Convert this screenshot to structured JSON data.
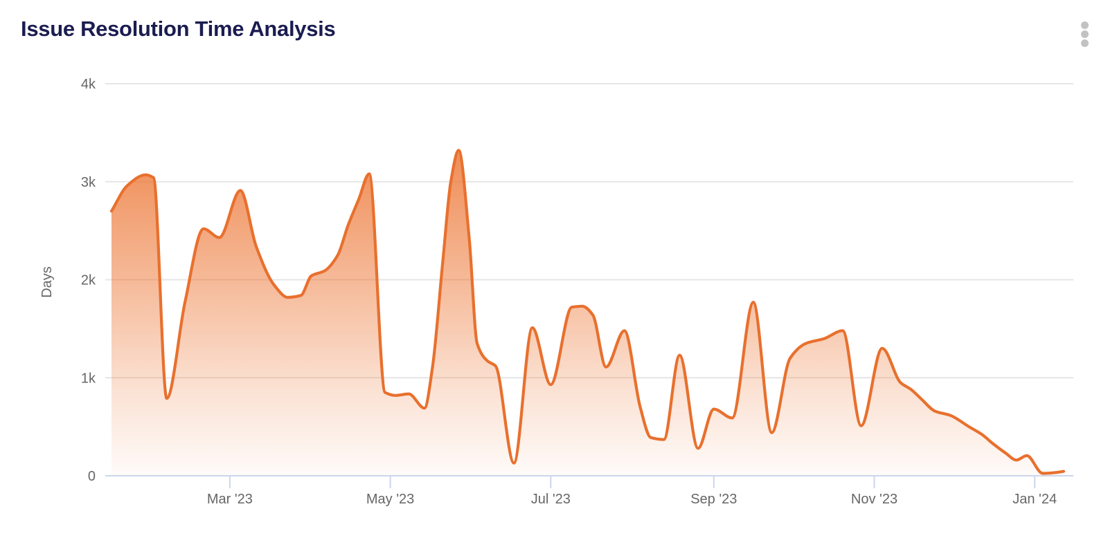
{
  "header": {
    "title": "Issue Resolution Time Analysis",
    "menu_icon": "kebab-vertical-dots"
  },
  "colors": {
    "title_text": "#1b1c50",
    "series_line": "#e8702e",
    "area_fill_base": "#ec7330",
    "axis_line": "#ccd6eb",
    "gridline": "#e6e6e6",
    "tick_label": "#666666",
    "menu_dots": "#c2c2c2",
    "background": "#ffffff"
  },
  "chart_data": {
    "type": "area",
    "title": "Issue Resolution Time Analysis",
    "xlabel": "",
    "ylabel": "Days",
    "ylim": [
      0,
      4000
    ],
    "x_domain": [
      "2023-01-15",
      "2024-01-12"
    ],
    "grid": true,
    "legend_position": "none",
    "smooth": true,
    "yticks": [
      {
        "value": 0,
        "label": "0"
      },
      {
        "value": 1000,
        "label": "1k"
      },
      {
        "value": 2000,
        "label": "2k"
      },
      {
        "value": 3000,
        "label": "3k"
      },
      {
        "value": 4000,
        "label": "4k"
      }
    ],
    "xticks": [
      {
        "date": "2023-03-01",
        "label": "Mar '23"
      },
      {
        "date": "2023-05-01",
        "label": "May '23"
      },
      {
        "date": "2023-07-01",
        "label": "Jul '23"
      },
      {
        "date": "2023-09-01",
        "label": "Sep '23"
      },
      {
        "date": "2023-11-01",
        "label": "Nov '23"
      },
      {
        "date": "2024-01-01",
        "label": "Jan '24"
      }
    ],
    "series": {
      "unit": "days",
      "points": [
        [
          "2023-01-15",
          2700
        ],
        [
          "2023-01-21",
          2960
        ],
        [
          "2023-01-28",
          3070
        ],
        [
          "2023-01-31",
          3040
        ],
        [
          "2023-02-05",
          790
        ],
        [
          "2023-02-12",
          1780
        ],
        [
          "2023-02-19",
          2520
        ],
        [
          "2023-02-25",
          2430
        ],
        [
          "2023-03-05",
          2910
        ],
        [
          "2023-03-11",
          2340
        ],
        [
          "2023-03-18",
          1940
        ],
        [
          "2023-03-23",
          1820
        ],
        [
          "2023-03-28",
          1840
        ],
        [
          "2023-04-01",
          2040
        ],
        [
          "2023-04-06",
          2090
        ],
        [
          "2023-04-11",
          2250
        ],
        [
          "2023-04-15",
          2560
        ],
        [
          "2023-04-19",
          2820
        ],
        [
          "2023-04-23",
          3080
        ],
        [
          "2023-04-29",
          850
        ],
        [
          "2023-05-03",
          820
        ],
        [
          "2023-05-08",
          835
        ],
        [
          "2023-05-14",
          690
        ],
        [
          "2023-05-17",
          1100
        ],
        [
          "2023-05-21",
          2200
        ],
        [
          "2023-05-24",
          3000
        ],
        [
          "2023-05-27",
          3320
        ],
        [
          "2023-05-31",
          2420
        ],
        [
          "2023-06-03",
          1350
        ],
        [
          "2023-06-07",
          1170
        ],
        [
          "2023-06-10",
          1120
        ],
        [
          "2023-06-17",
          130
        ],
        [
          "2023-06-24",
          1510
        ],
        [
          "2023-07-01",
          930
        ],
        [
          "2023-07-09",
          1720
        ],
        [
          "2023-07-13",
          1730
        ],
        [
          "2023-07-17",
          1640
        ],
        [
          "2023-07-22",
          1110
        ],
        [
          "2023-07-29",
          1480
        ],
        [
          "2023-08-04",
          700
        ],
        [
          "2023-08-08",
          390
        ],
        [
          "2023-08-13",
          370
        ],
        [
          "2023-08-19",
          1230
        ],
        [
          "2023-08-26",
          280
        ],
        [
          "2023-09-01",
          680
        ],
        [
          "2023-09-08",
          590
        ],
        [
          "2023-09-16",
          1770
        ],
        [
          "2023-09-23",
          440
        ],
        [
          "2023-09-30",
          1200
        ],
        [
          "2023-10-06",
          1350
        ],
        [
          "2023-10-13",
          1400
        ],
        [
          "2023-10-20",
          1480
        ],
        [
          "2023-10-27",
          510
        ],
        [
          "2023-11-04",
          1300
        ],
        [
          "2023-11-11",
          950
        ],
        [
          "2023-11-15",
          880
        ],
        [
          "2023-11-19",
          780
        ],
        [
          "2023-11-24",
          660
        ],
        [
          "2023-11-30",
          615
        ],
        [
          "2023-12-07",
          500
        ],
        [
          "2023-12-12",
          420
        ],
        [
          "2023-12-16",
          330
        ],
        [
          "2023-12-21",
          230
        ],
        [
          "2023-12-25",
          160
        ],
        [
          "2023-12-29",
          205
        ],
        [
          "2024-01-04",
          25
        ],
        [
          "2024-01-08",
          30
        ],
        [
          "2024-01-12",
          45
        ]
      ]
    }
  }
}
